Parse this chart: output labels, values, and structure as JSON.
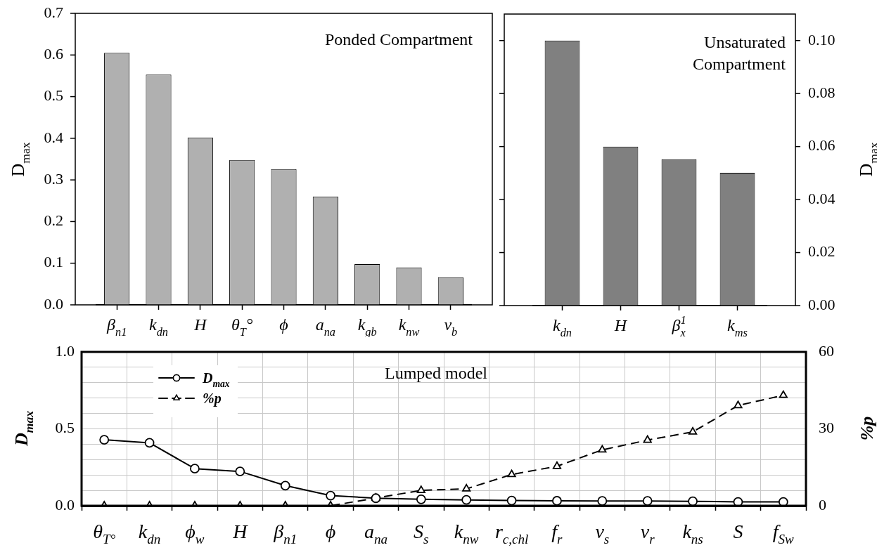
{
  "chart_data": [
    {
      "type": "bar",
      "categories": [
        "β$_{n1}$",
        "k$_{dn}$",
        "H",
        "θ$_{T}$°",
        "ϕ",
        "a$_{na}$",
        "k$_{gb}$",
        "k$_{nw}$",
        "v$_{b}$"
      ],
      "values": [
        0.605,
        0.553,
        0.402,
        0.348,
        0.326,
        0.26,
        0.098,
        0.09,
        0.066
      ],
      "color": "#b0b0b0",
      "ylabel": "D$_{max}$",
      "ylim": [
        0,
        0.7
      ],
      "yticks": [
        {
          "value": 0,
          "label": "0.0"
        },
        0.1,
        0.2,
        0.3,
        0.4,
        0.5,
        0.6,
        0.7
      ],
      "annotations": [
        "Ponded Compartment"
      ]
    },
    {
      "type": "bar",
      "categories": [
        "k$_{dn}$",
        "H",
        "β$_{x}$$^{1}$",
        "k$_{ms}$"
      ],
      "series": [
        {
          "color": "#808080",
          "axis": "y2",
          "values": [
            0.1,
            0.06,
            0.0552,
            0.0501
          ]
        }
      ],
      "y2label": "D$_{max}$",
      "y2lim": [
        0,
        0.11
      ],
      "y2ticks": [
        {
          "value": 0,
          "label": "0.00"
        },
        {
          "value": 0.02,
          "label": "0.02"
        },
        {
          "value": 0.04,
          "label": "0.04"
        },
        {
          "value": 0.06,
          "label": "0.06"
        },
        {
          "value": 0.08,
          "label": "0.08"
        },
        {
          "value": 0.1,
          "label": "0.10"
        }
      ],
      "annotations": [
        "Unsaturated\nCompartment"
      ]
    },
    {
      "type": "line",
      "categories": [
        "θ$_{T°}$",
        "k$_{dn}$",
        "ϕ$_{w}$",
        "H",
        "β$_{n1}$",
        "ϕ",
        "a$_{na}$",
        "S$_{s}$",
        "k$_{nw}$",
        "r$_{c,chl}$",
        "f$_{r}$",
        "v$_{s}$",
        "v$_{r}$",
        "k$_{ns}$",
        "S",
        "f$_{Sw}$"
      ],
      "series": [
        {
          "name": "D$_{max}$",
          "color": "#000000",
          "marker": "circle",
          "line_style": "solid",
          "values": [
            0.429,
            0.409,
            0.241,
            0.223,
            0.131,
            0.066,
            0.049,
            0.042,
            0.038,
            0.034,
            0.032,
            0.031,
            0.031,
            0.029,
            0.025,
            0.025
          ]
        },
        {
          "name": "%p",
          "color": "#000000",
          "marker": "triangle",
          "line_style": "dashed",
          "axis": "y2",
          "values": [
            0,
            0,
            0,
            0,
            0,
            0,
            3.0,
            6.0,
            6.6,
            12.2,
            15.4,
            21.8,
            25.6,
            28.8,
            39.1,
            43.1
          ]
        }
      ],
      "ylabel": "D$_{max}$",
      "y2label": "%p",
      "ylim": [
        0,
        1
      ],
      "yticks": [
        {
          "value": 0,
          "label": "0.0"
        },
        {
          "value": 0.1,
          "label": null
        },
        {
          "value": 0.2,
          "label": null
        },
        {
          "value": 0.3,
          "label": null
        },
        {
          "value": 0.4,
          "label": null
        },
        {
          "value": 0.5,
          "label": "0.5"
        },
        {
          "value": 0.6,
          "label": null
        },
        {
          "value": 0.7,
          "label": null
        },
        {
          "value": 0.8,
          "label": null
        },
        {
          "value": 0.9,
          "label": null
        },
        {
          "value": 1,
          "label": "1.0"
        }
      ],
      "y2lim": [
        0,
        60
      ],
      "y2ticks": [
        0,
        30,
        60
      ],
      "grid": true,
      "legend": "top left",
      "annotations": [
        "Lumped model"
      ]
    }
  ]
}
